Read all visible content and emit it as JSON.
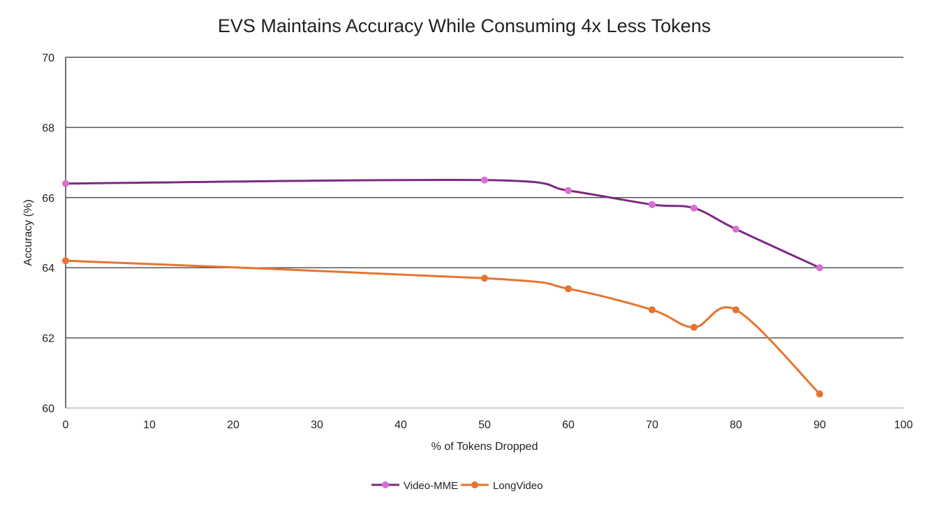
{
  "chart_data": {
    "type": "line",
    "title": "EVS Maintains Accuracy While Consuming 4x Less Tokens",
    "xlabel": "% of Tokens Dropped",
    "ylabel": "Accuracy (%)",
    "xlim": [
      0,
      100
    ],
    "ylim": [
      60,
      70
    ],
    "xticks": [
      0,
      10,
      20,
      30,
      40,
      50,
      60,
      70,
      80,
      90,
      100
    ],
    "yticks": [
      60,
      62,
      64,
      66,
      68,
      70
    ],
    "grid": "horizontal",
    "smooth": true,
    "legend_position": "bottom",
    "series": [
      {
        "name": "Video-MME",
        "line_color": "#7b2a80",
        "marker_color": "#d86fd2",
        "x": [
          0,
          50,
          60,
          70,
          75,
          80,
          90
        ],
        "y": [
          66.4,
          66.5,
          66.2,
          65.8,
          65.7,
          65.1,
          64.0
        ]
      },
      {
        "name": "LongVideo",
        "line_color": "#e8732f",
        "marker_color": "#e8732f",
        "x": [
          0,
          50,
          60,
          70,
          75,
          80,
          90
        ],
        "y": [
          64.2,
          63.7,
          63.4,
          62.8,
          62.3,
          62.8,
          60.4
        ]
      }
    ]
  }
}
